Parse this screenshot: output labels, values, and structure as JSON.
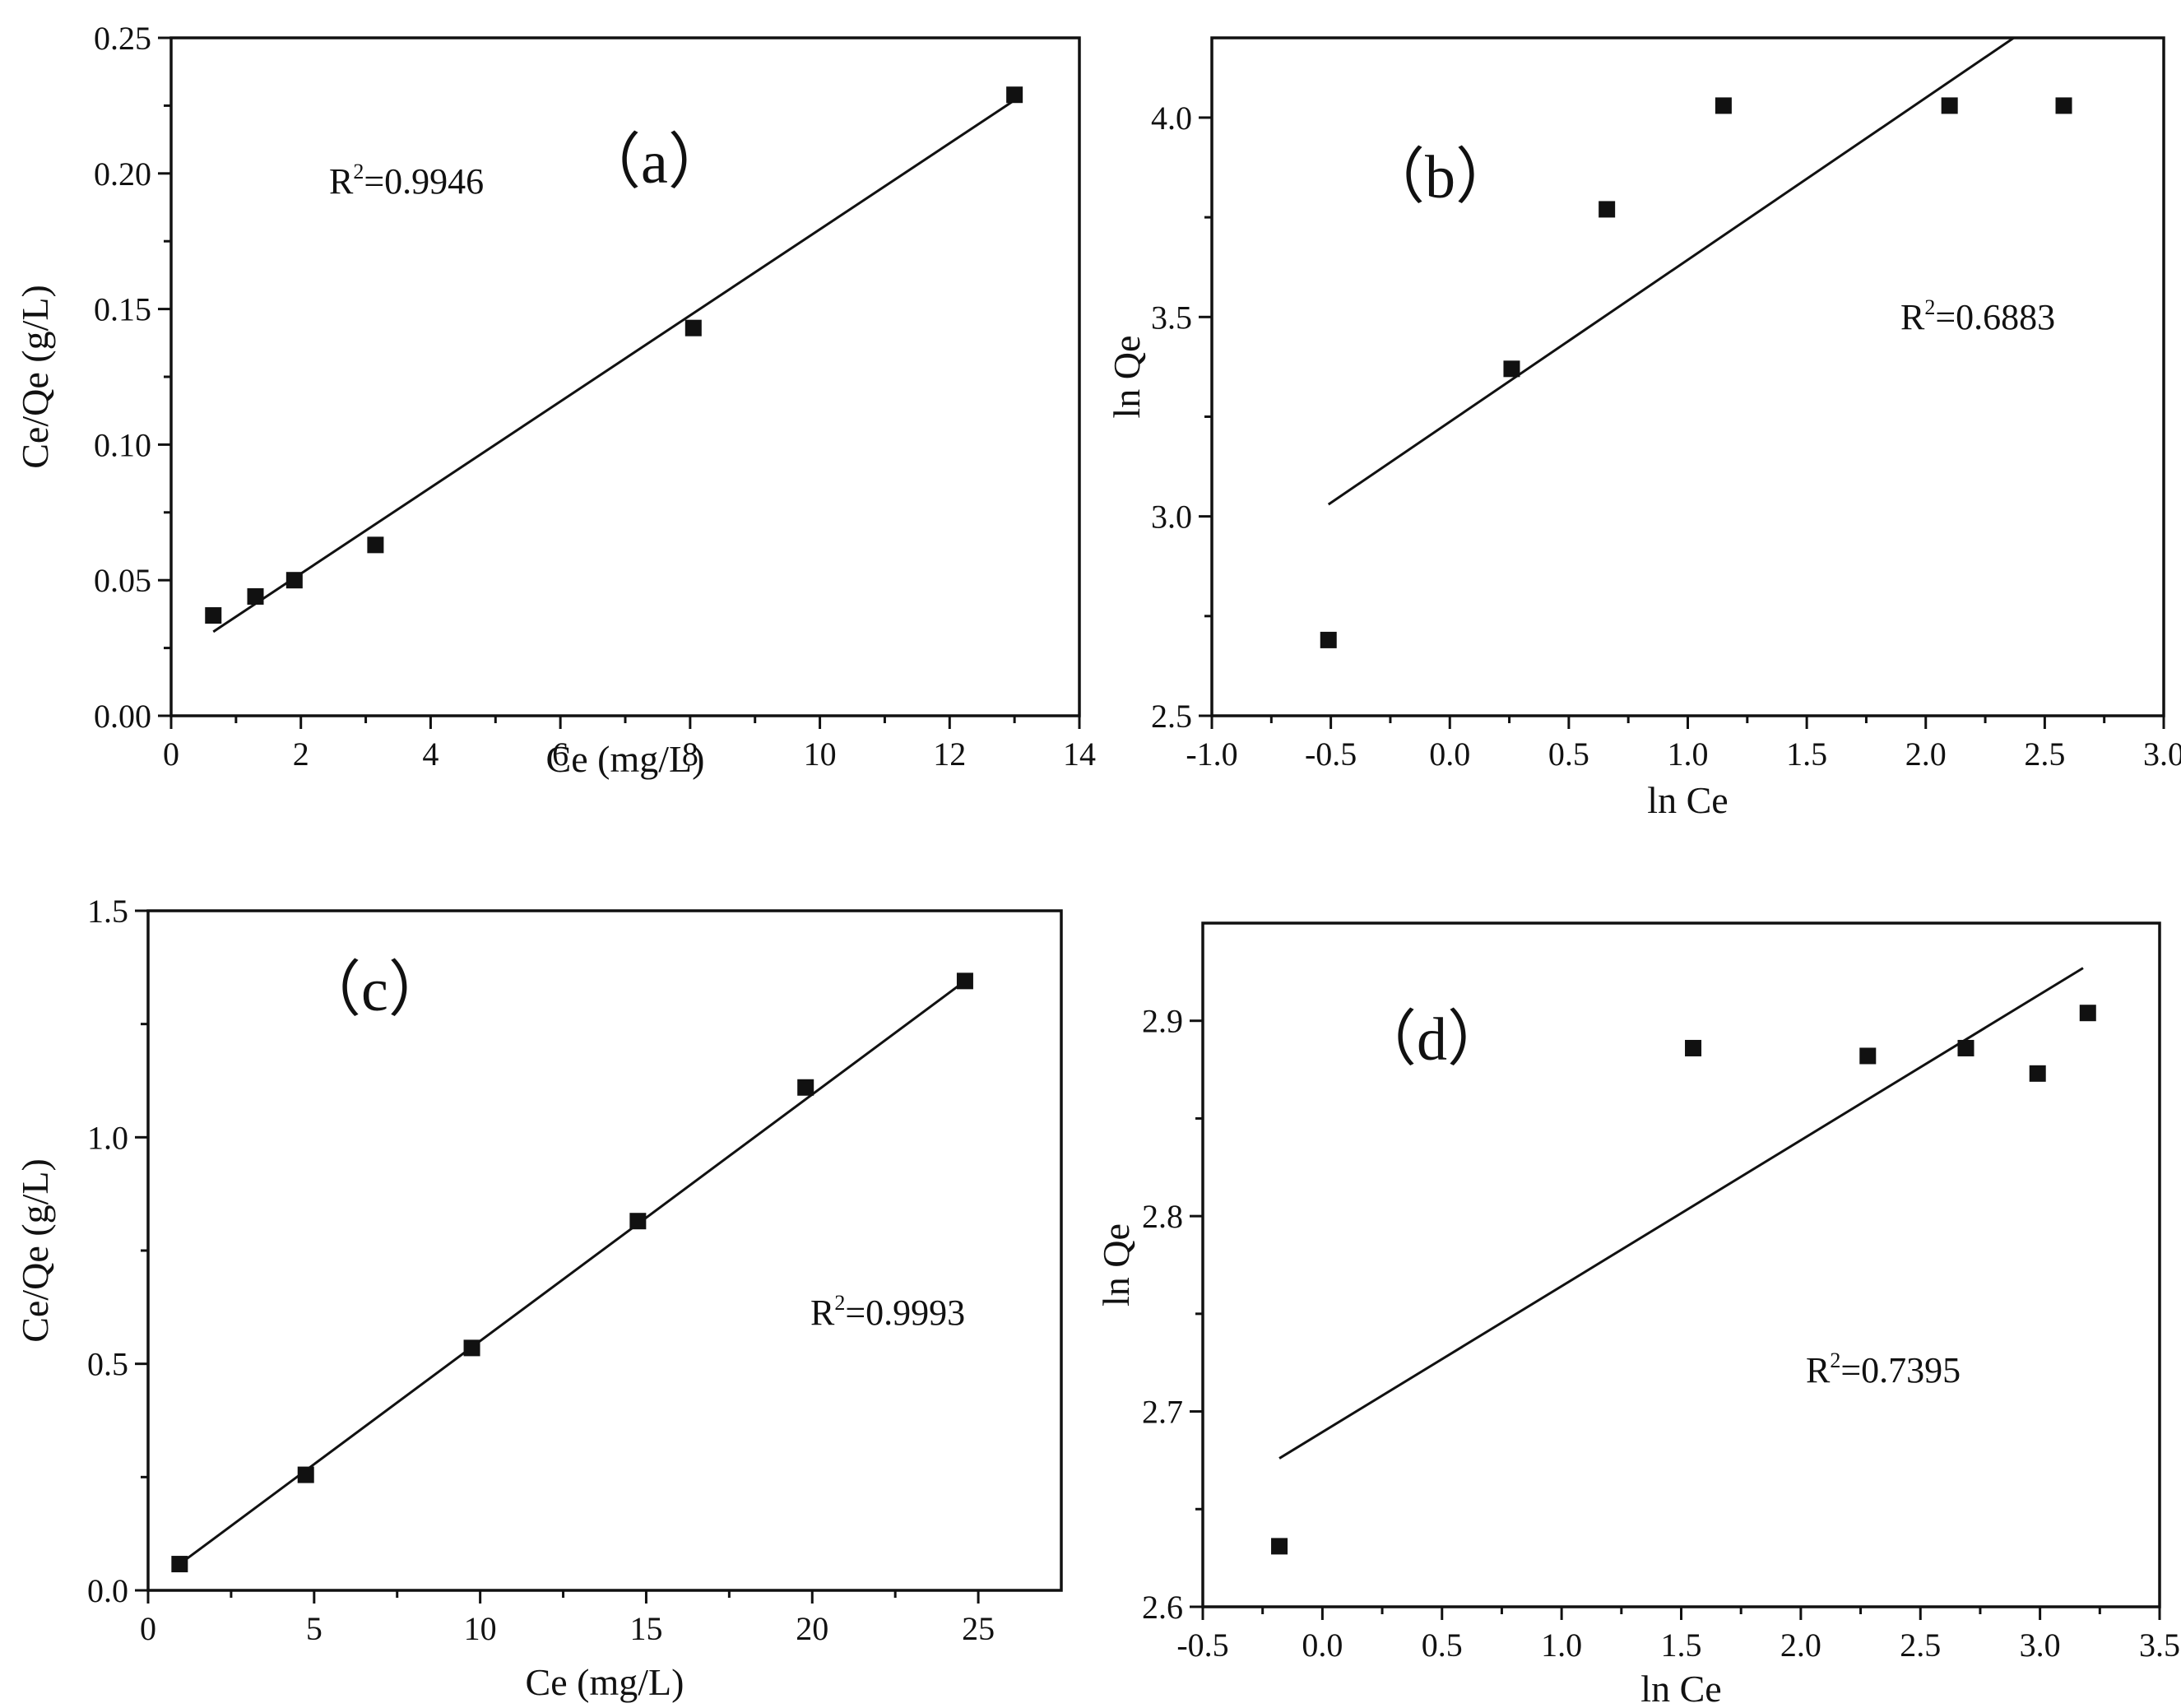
{
  "chart_data": [
    {
      "id": "a",
      "type": "scatter",
      "label": "（a）",
      "r2_text": "R",
      "r2_value": "=0.9946",
      "xlabel": "Ce (mg/L)",
      "ylabel": "Ce/Qe (g/L)",
      "xlim": [
        0,
        14
      ],
      "ylim": [
        0,
        0.25
      ],
      "xticks": [
        0,
        2,
        4,
        6,
        8,
        10,
        12,
        14
      ],
      "xtick_labels": [
        "0",
        "2",
        "4",
        "6",
        "8",
        "10",
        "12",
        "14"
      ],
      "yticks": [
        0,
        0.05,
        0.1,
        0.15,
        0.2,
        0.25
      ],
      "ytick_labels": [
        "0.00",
        "0.05",
        "0.10",
        "0.15",
        "0.20",
        "0.25"
      ],
      "points": [
        [
          0.65,
          0.037
        ],
        [
          1.3,
          0.044
        ],
        [
          1.9,
          0.05
        ],
        [
          3.15,
          0.063
        ],
        [
          8.05,
          0.143
        ],
        [
          13.0,
          0.229
        ]
      ],
      "fit": [
        [
          0.65,
          0.031
        ],
        [
          13.0,
          0.227
        ]
      ]
    },
    {
      "id": "b",
      "type": "scatter",
      "label": "（b）",
      "r2_text": "R",
      "r2_value": "=0.6883",
      "xlabel": "ln Ce",
      "ylabel": "ln Qe",
      "xlim": [
        -1.0,
        3.0
      ],
      "ylim": [
        2.5,
        4.2
      ],
      "xticks": [
        -1.0,
        -0.5,
        0.0,
        0.5,
        1.0,
        1.5,
        2.0,
        2.5,
        3.0
      ],
      "xtick_labels": [
        "-1.0",
        "-0.5",
        "0.0",
        "0.5",
        "1.0",
        "1.5",
        "2.0",
        "2.5",
        "3.0"
      ],
      "yticks": [
        2.5,
        3.0,
        3.5,
        4.0
      ],
      "ytick_labels": [
        "2.5",
        "3.0",
        "3.5",
        "4.0"
      ],
      "points": [
        [
          -0.51,
          2.69
        ],
        [
          0.26,
          3.37
        ],
        [
          0.66,
          3.77
        ],
        [
          1.15,
          4.03
        ],
        [
          2.1,
          4.03
        ],
        [
          2.58,
          4.03
        ]
      ],
      "fit": [
        [
          -0.51,
          3.03
        ],
        [
          2.37,
          4.2
        ]
      ]
    },
    {
      "id": "c",
      "type": "scatter",
      "label": "（c）",
      "r2_text": "R",
      "r2_value": "=0.9993",
      "xlabel": "Ce (mg/L)",
      "ylabel": "Ce/Qe (g/L)",
      "xlim": [
        0,
        27.5
      ],
      "ylim": [
        0,
        1.5
      ],
      "xticks": [
        0,
        5,
        10,
        15,
        20,
        25
      ],
      "xtick_labels": [
        "0",
        "5",
        "10",
        "15",
        "20",
        "25"
      ],
      "yticks": [
        0,
        0.5,
        1.0,
        1.5
      ],
      "ytick_labels": [
        "0.0",
        "0.5",
        "1.0",
        "1.5"
      ],
      "points": [
        [
          0.95,
          0.058
        ],
        [
          4.75,
          0.255
        ],
        [
          9.75,
          0.535
        ],
        [
          14.75,
          0.815
        ],
        [
          19.8,
          1.11
        ],
        [
          24.6,
          1.345
        ]
      ],
      "fit": [
        [
          0.95,
          0.058
        ],
        [
          24.6,
          1.345
        ]
      ]
    },
    {
      "id": "d",
      "type": "scatter",
      "label": "（d）",
      "r2_text": "R",
      "r2_value": "=0.7395",
      "xlabel": "ln Ce",
      "ylabel": "ln Qe",
      "xlim": [
        -0.5,
        3.5
      ],
      "ylim": [
        2.6,
        2.95
      ],
      "xticks": [
        -0.5,
        0.0,
        0.5,
        1.0,
        1.5,
        2.0,
        2.5,
        3.0,
        3.5
      ],
      "xtick_labels": [
        "-0.5",
        "0.0",
        "0.5",
        "1.0",
        "1.5",
        "2.0",
        "2.5",
        "3.0",
        "3.5"
      ],
      "yticks": [
        2.6,
        2.7,
        2.8,
        2.9
      ],
      "ytick_labels": [
        "2.6",
        "2.7",
        "2.8",
        "2.9"
      ],
      "points": [
        [
          -0.18,
          2.631
        ],
        [
          1.55,
          2.886
        ],
        [
          2.28,
          2.882
        ],
        [
          2.69,
          2.886
        ],
        [
          2.99,
          2.873
        ],
        [
          3.2,
          2.904
        ]
      ],
      "fit": [
        [
          -0.18,
          2.676
        ],
        [
          3.18,
          2.927
        ]
      ]
    }
  ]
}
